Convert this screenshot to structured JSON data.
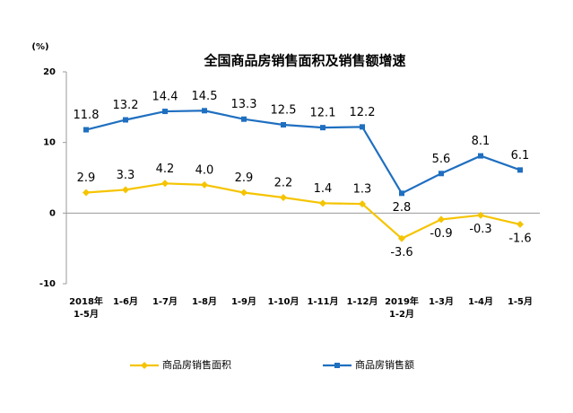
{
  "chart_data": {
    "type": "line",
    "title": "全国商品房销售面积及销售额增速",
    "y_label": "(%)",
    "categories": [
      "2018年\n1-5月",
      "1-6月",
      "1-7月",
      "1-8月",
      "1-9月",
      "1-10月",
      "1-11月",
      "1-12月",
      "2019年\n1-2月",
      "1-3月",
      "1-4月",
      "1-5月"
    ],
    "series": [
      {
        "name": "商品房销售面积",
        "color": "#f5c400",
        "values": [
          2.9,
          3.3,
          4.2,
          4.0,
          2.9,
          2.2,
          1.4,
          1.3,
          -3.6,
          -0.9,
          -0.3,
          -1.6
        ],
        "value_labels": [
          "2.9",
          "3.3",
          "4.2",
          "4.0",
          "2.9",
          "2.2",
          "1.4",
          "1.3",
          "-3.6",
          "-0.9",
          "-0.3",
          "-1.6"
        ]
      },
      {
        "name": "商品房销售额",
        "color": "#1f6fc0",
        "values": [
          11.8,
          13.2,
          14.4,
          14.5,
          13.3,
          12.5,
          12.1,
          12.2,
          2.8,
          5.6,
          8.1,
          6.1
        ],
        "value_labels": [
          "11.8",
          "13.2",
          "14.4",
          "14.5",
          "13.3",
          "12.5",
          "12.1",
          "12.2",
          "2.8",
          "5.6",
          "8.1",
          "6.1"
        ]
      }
    ],
    "ylim": [
      -10,
      20
    ],
    "yticks": [
      -10,
      0,
      10,
      20
    ],
    "grid": false,
    "legend": "bottom"
  }
}
